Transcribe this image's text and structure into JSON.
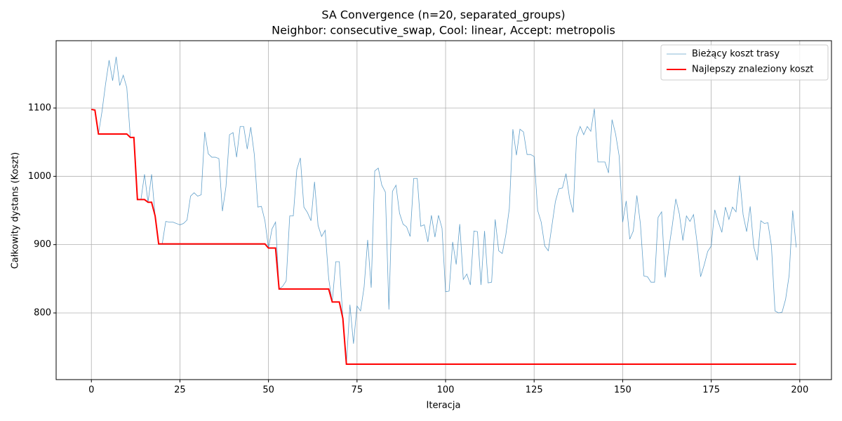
{
  "chart_data": {
    "type": "line",
    "title": "SA Convergence (n=20, separated_groups)",
    "subtitle": "Neighbor: consecutive_swap, Cool: linear, Accept: metropolis",
    "xlabel": "Iteracja",
    "ylabel": "Całkowity dystans (Koszt)",
    "xlim": [
      -9.95,
      208.95
    ],
    "ylim": [
      702.4,
      1198.6
    ],
    "xticks": [
      0,
      25,
      50,
      75,
      100,
      125,
      150,
      175,
      200
    ],
    "yticks": [
      800,
      900,
      1000,
      1100
    ],
    "grid": true,
    "legend": "upper right",
    "x": [
      0,
      1,
      2,
      3,
      4,
      5,
      6,
      7,
      8,
      9,
      10,
      11,
      12,
      13,
      14,
      15,
      16,
      17,
      18,
      19,
      20,
      21,
      22,
      23,
      24,
      25,
      26,
      27,
      28,
      29,
      30,
      31,
      32,
      33,
      34,
      35,
      36,
      37,
      38,
      39,
      40,
      41,
      42,
      43,
      44,
      45,
      46,
      47,
      48,
      49,
      50,
      51,
      52,
      53,
      54,
      55,
      56,
      57,
      58,
      59,
      60,
      61,
      62,
      63,
      64,
      65,
      66,
      67,
      68,
      69,
      70,
      71,
      72,
      73,
      74,
      75,
      76,
      77,
      78,
      79,
      80,
      81,
      82,
      83,
      84,
      85,
      86,
      87,
      88,
      89,
      90,
      91,
      92,
      93,
      94,
      95,
      96,
      97,
      98,
      99,
      100,
      101,
      102,
      103,
      104,
      105,
      106,
      107,
      108,
      109,
      110,
      111,
      112,
      113,
      114,
      115,
      116,
      117,
      118,
      119,
      120,
      121,
      122,
      123,
      124,
      125,
      126,
      127,
      128,
      129,
      130,
      131,
      132,
      133,
      134,
      135,
      136,
      137,
      138,
      139,
      140,
      141,
      142,
      143,
      144,
      145,
      146,
      147,
      148,
      149,
      150,
      151,
      152,
      153,
      154,
      155,
      156,
      157,
      158,
      159,
      160,
      161,
      162,
      163,
      164,
      165,
      166,
      167,
      168,
      169,
      170,
      171,
      172,
      173,
      174,
      175,
      176,
      177,
      178,
      179,
      180,
      181,
      182,
      183,
      184,
      185,
      186,
      187,
      188,
      189,
      190,
      191,
      192,
      193,
      194,
      195,
      196,
      197,
      198,
      199
    ],
    "series": [
      {
        "name": "Bieżący koszt trasy",
        "color": "#1f77b4",
        "width": 0.8,
        "opacity": 0.7,
        "values": [
          1098,
          1097,
          1062,
          1095,
          1135,
          1170,
          1140,
          1175,
          1133,
          1148,
          1130,
          1057,
          1057,
          966,
          966,
          1003,
          962,
          1003,
          942,
          901,
          901,
          934,
          933,
          933,
          931,
          929,
          931,
          936,
          971,
          976,
          971,
          973,
          1065,
          1033,
          1028,
          1028,
          1026,
          949,
          985,
          1061,
          1064,
          1028,
          1073,
          1073,
          1040,
          1072,
          1032,
          955,
          956,
          935,
          895,
          923,
          933,
          835,
          839,
          847,
          942,
          942,
          1010,
          1027,
          955,
          947,
          935,
          992,
          928,
          912,
          921,
          850,
          816,
          875,
          875,
          792,
          725,
          812,
          755,
          810,
          803,
          838,
          907,
          837,
          1008,
          1012,
          987,
          977,
          805,
          978,
          987,
          946,
          930,
          926,
          912,
          997,
          997,
          927,
          929,
          904,
          943,
          911,
          943,
          924,
          831,
          832,
          904,
          871,
          930,
          849,
          857,
          841,
          920,
          919,
          841,
          920,
          844,
          845,
          937,
          891,
          887,
          914,
          953,
          1069,
          1031,
          1069,
          1065,
          1032,
          1032,
          1029,
          950,
          933,
          898,
          891,
          927,
          963,
          982,
          983,
          1004,
          968,
          947,
          1058,
          1073,
          1061,
          1073,
          1066,
          1099,
          1021,
          1021,
          1021,
          1005,
          1083,
          1062,
          1030,
          933,
          964,
          908,
          920,
          972,
          931,
          854,
          853,
          845,
          845,
          940,
          948,
          852,
          893,
          928,
          967,
          945,
          906,
          942,
          934,
          944,
          903,
          853,
          870,
          890,
          898,
          951,
          933,
          918,
          955,
          937,
          955,
          948,
          1001,
          944,
          919,
          956,
          897,
          877,
          935,
          931,
          932,
          898,
          803,
          800,
          801,
          820,
          855,
          950,
          896
        ]
      },
      {
        "name": "Najlepszy znaleziony koszt",
        "color": "#ff0000",
        "width": 2,
        "opacity": 1,
        "values": [
          1098,
          1097,
          1062,
          1062,
          1062,
          1062,
          1062,
          1062,
          1062,
          1062,
          1062,
          1057,
          1057,
          966,
          966,
          966,
          962,
          962,
          942,
          901,
          901,
          901,
          901,
          901,
          901,
          901,
          901,
          901,
          901,
          901,
          901,
          901,
          901,
          901,
          901,
          901,
          901,
          901,
          901,
          901,
          901,
          901,
          901,
          901,
          901,
          901,
          901,
          901,
          901,
          901,
          895,
          895,
          895,
          835,
          835,
          835,
          835,
          835,
          835,
          835,
          835,
          835,
          835,
          835,
          835,
          835,
          835,
          835,
          816,
          816,
          816,
          792,
          725,
          725,
          725,
          725,
          725,
          725,
          725,
          725,
          725,
          725,
          725,
          725,
          725,
          725,
          725,
          725,
          725,
          725,
          725,
          725,
          725,
          725,
          725,
          725,
          725,
          725,
          725,
          725,
          725,
          725,
          725,
          725,
          725,
          725,
          725,
          725,
          725,
          725,
          725,
          725,
          725,
          725,
          725,
          725,
          725,
          725,
          725,
          725,
          725,
          725,
          725,
          725,
          725,
          725,
          725,
          725,
          725,
          725,
          725,
          725,
          725,
          725,
          725,
          725,
          725,
          725,
          725,
          725,
          725,
          725,
          725,
          725,
          725,
          725,
          725,
          725,
          725,
          725,
          725,
          725,
          725,
          725,
          725,
          725,
          725,
          725,
          725,
          725,
          725,
          725,
          725,
          725,
          725,
          725,
          725,
          725,
          725,
          725,
          725,
          725,
          725,
          725,
          725,
          725,
          725,
          725,
          725,
          725,
          725,
          725,
          725,
          725,
          725,
          725,
          725,
          725,
          725,
          725,
          725,
          725,
          725,
          725,
          725,
          725,
          725,
          725,
          725,
          725
        ]
      }
    ]
  }
}
